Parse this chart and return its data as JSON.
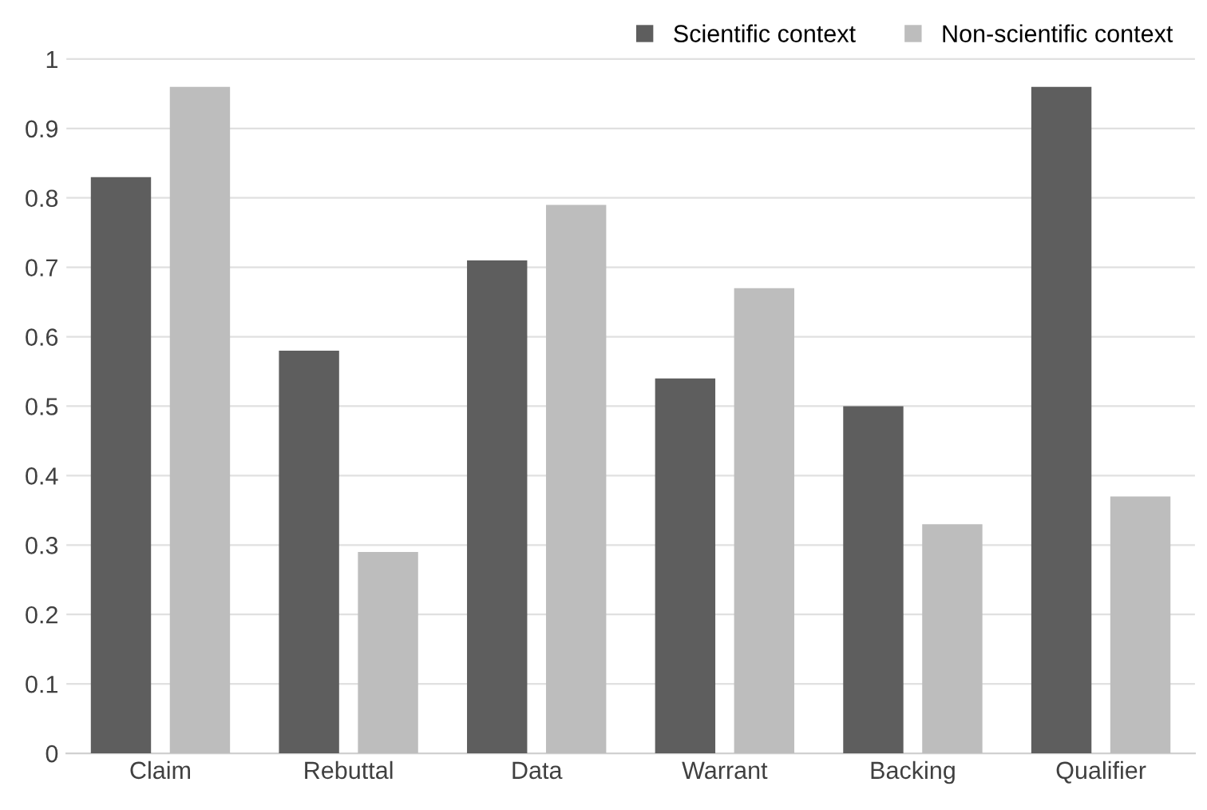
{
  "chart_data": {
    "type": "bar",
    "categories": [
      "Claim",
      "Rebuttal",
      "Data",
      "Warrant",
      "Backing",
      "Qualifier"
    ],
    "series": [
      {
        "name": "Scientific context",
        "color": "#5e5e5e",
        "values": [
          0.83,
          0.58,
          0.71,
          0.54,
          0.5,
          0.96
        ]
      },
      {
        "name": "Non-scientific context",
        "color": "#bdbdbd",
        "values": [
          0.96,
          0.29,
          0.79,
          0.67,
          0.33,
          0.37
        ]
      }
    ],
    "ylim": [
      0,
      1.05
    ],
    "yticks": [
      0,
      0.1,
      0.2,
      0.3,
      0.4,
      0.5,
      0.6,
      0.7,
      0.8,
      0.9,
      1
    ],
    "grid": "y",
    "legend": "top right"
  }
}
